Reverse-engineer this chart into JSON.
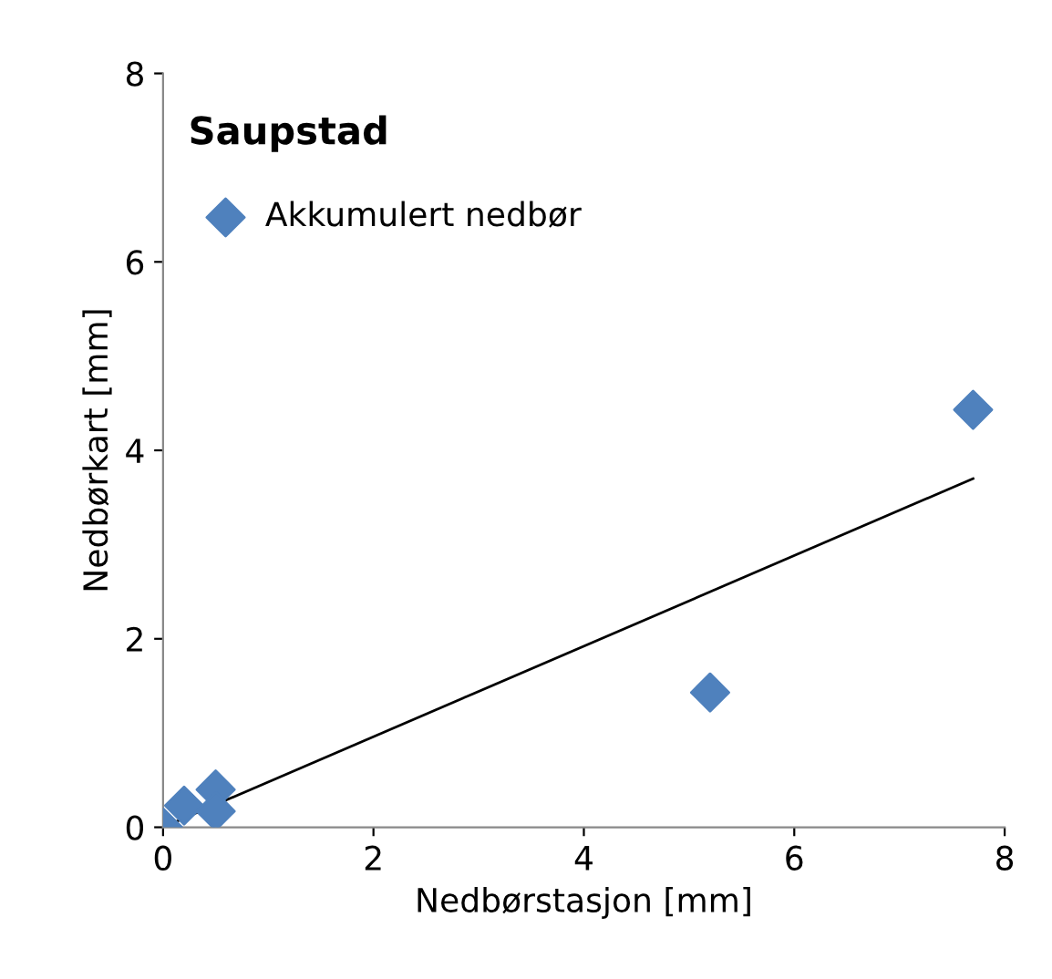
{
  "chart_data": {
    "type": "scatter",
    "title": "Saupstad",
    "xlabel": "Nedbørstasjon [mm]",
    "ylabel": "Nedbørkart [mm]",
    "xlim": [
      0,
      8
    ],
    "ylim": [
      0,
      8
    ],
    "xticks": [
      0,
      2,
      4,
      6,
      8
    ],
    "yticks": [
      0,
      2,
      4,
      6,
      8
    ],
    "grid": false,
    "legend": "top left",
    "series": [
      {
        "name": "Akkumulert nedbør",
        "color": "#4f81bd",
        "marker": "diamond",
        "x": [
          0,
          0.2,
          0.5,
          0.5,
          5.2,
          7.7
        ],
        "values": [
          0,
          0.23,
          0.4,
          0.17,
          1.43,
          4.43
        ]
      },
      {
        "type": "line",
        "color": "#000000",
        "x": [
          0,
          7.7
        ],
        "values": [
          0,
          3.7
        ]
      }
    ]
  }
}
